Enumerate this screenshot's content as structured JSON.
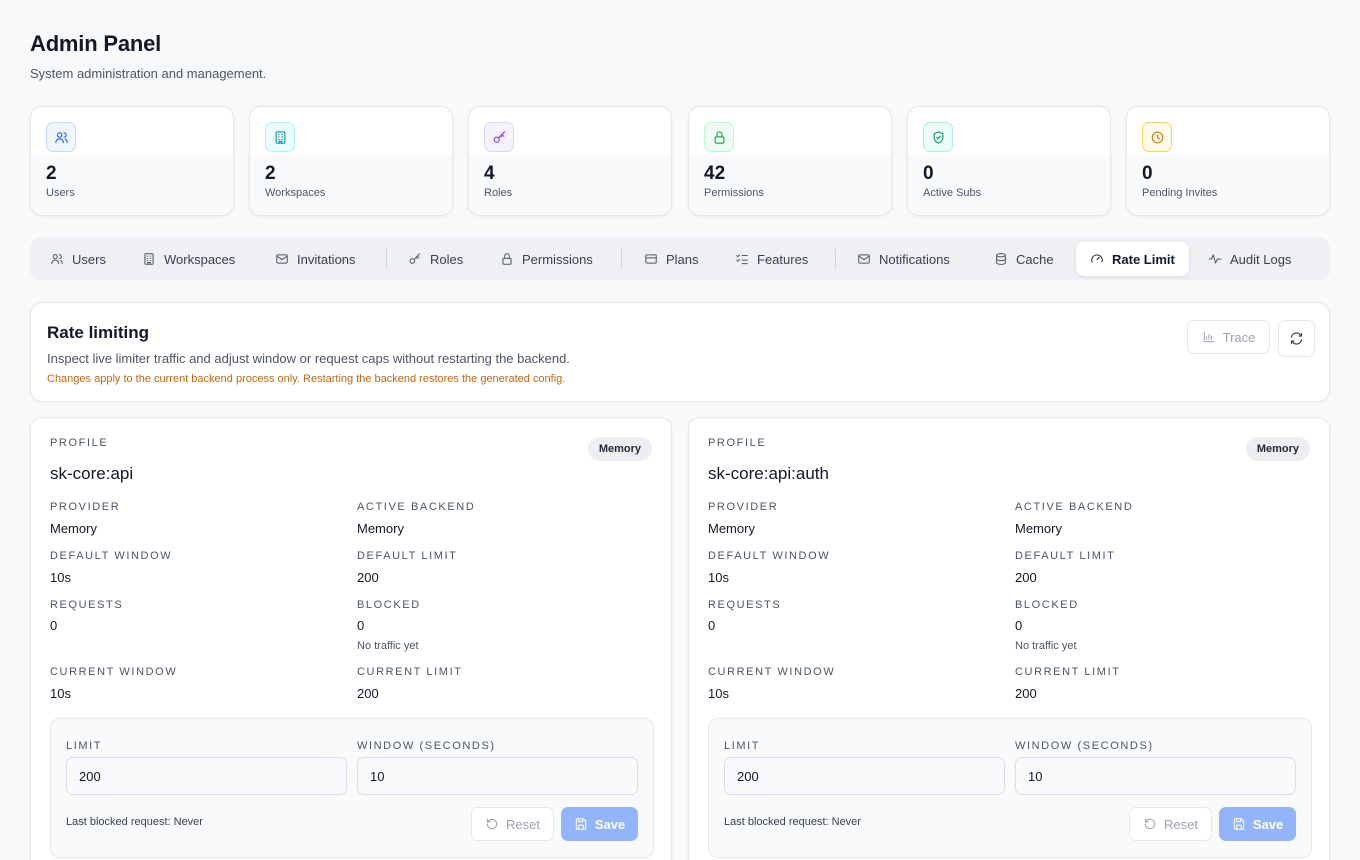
{
  "header": {
    "title": "Admin Panel",
    "subtitle": "System administration and management."
  },
  "stats": [
    {
      "value": "2",
      "label": "Users",
      "icon": "users-icon",
      "color": "#2563eb"
    },
    {
      "value": "2",
      "label": "Workspaces",
      "icon": "building-icon",
      "color": "#0891b2"
    },
    {
      "value": "4",
      "label": "Roles",
      "icon": "key-icon",
      "color": "#7c3aed"
    },
    {
      "value": "42",
      "label": "Permissions",
      "icon": "lock-icon",
      "color": "#16a34a"
    },
    {
      "value": "0",
      "label": "Active Subs",
      "icon": "shield-check-icon",
      "color": "#059669"
    },
    {
      "value": "0",
      "label": "Pending Invites",
      "icon": "clock-icon",
      "color": "#d97706"
    }
  ],
  "tabs": [
    {
      "label": "Users",
      "icon": "users-icon"
    },
    {
      "label": "Workspaces",
      "icon": "building-icon"
    },
    {
      "label": "Invitations",
      "icon": "mail-icon"
    },
    {
      "label": "Roles",
      "icon": "key-icon"
    },
    {
      "label": "Permissions",
      "icon": "lock-icon"
    },
    {
      "label": "Plans",
      "icon": "credit-card-icon"
    },
    {
      "label": "Features",
      "icon": "list-checks-icon"
    },
    {
      "label": "Notifications",
      "icon": "mail-icon"
    },
    {
      "label": "Cache",
      "icon": "database-icon"
    },
    {
      "label": "Rate Limit",
      "icon": "gauge-icon",
      "active": true
    },
    {
      "label": "Audit Logs",
      "icon": "activity-icon"
    }
  ],
  "rate_limit": {
    "title": "Rate limiting",
    "description": "Inspect live limiter traffic and adjust window or request caps without restarting the backend.",
    "warning": "Changes apply to the current backend process only. Restarting the backend restores the generated config.",
    "trace_label": "Trace",
    "warning_color": "#c2680c"
  },
  "labels": {
    "profile": "Profile",
    "provider": "Provider",
    "active_backend": "Active Backend",
    "default_window": "Default Window",
    "default_limit": "Default Limit",
    "requests": "Requests",
    "blocked": "Blocked",
    "current_window": "Current Window",
    "current_limit": "Current Limit",
    "limit": "Limit",
    "window_seconds": "Window (Seconds)",
    "reset": "Reset",
    "save": "Save"
  },
  "profiles": [
    {
      "name": "sk-core:api",
      "badge": "Memory",
      "provider": "Memory",
      "active_backend": "Memory",
      "default_window": "10s",
      "default_limit": "200",
      "requests": "0",
      "blocked": "0",
      "blocked_hint": "No traffic yet",
      "current_window": "10s",
      "current_limit": "200",
      "limit_input": "200",
      "window_input": "10",
      "last_blocked": "Last blocked request: Never"
    },
    {
      "name": "sk-core:api:auth",
      "badge": "Memory",
      "provider": "Memory",
      "active_backend": "Memory",
      "default_window": "10s",
      "default_limit": "200",
      "requests": "0",
      "blocked": "0",
      "blocked_hint": "No traffic yet",
      "current_window": "10s",
      "current_limit": "200",
      "limit_input": "200",
      "window_input": "10",
      "last_blocked": "Last blocked request: Never"
    }
  ]
}
